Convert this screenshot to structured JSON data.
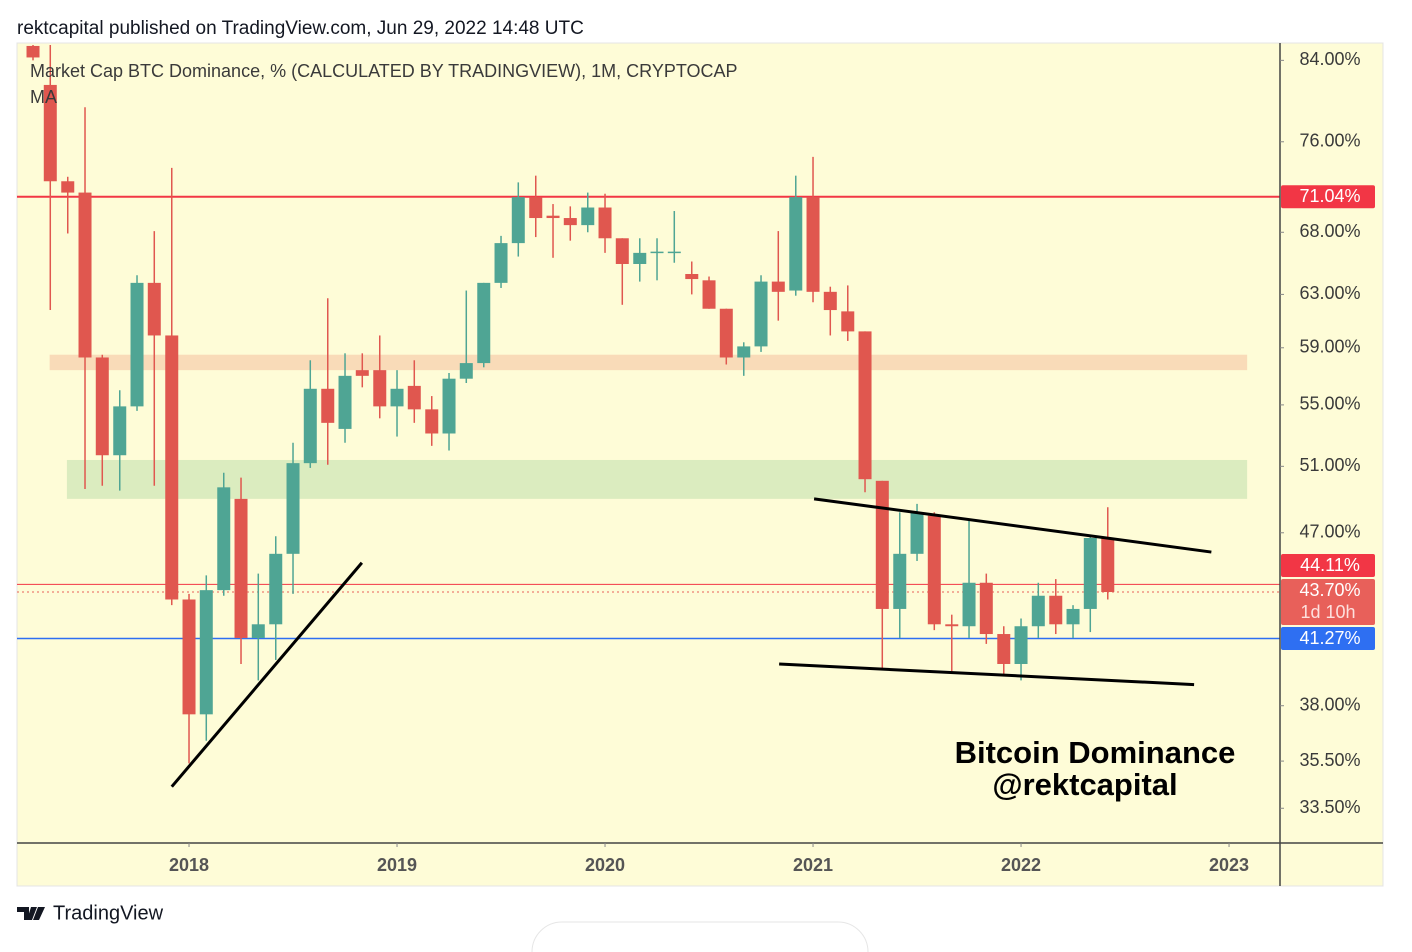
{
  "header": "rektcapital published on TradingView.com, Jun 29, 2022 14:48 UTC",
  "footer": "TradingView",
  "chart_data": {
    "type": "candlestick",
    "title": "Market Cap BTC Dominance, % (CALCULATED BY TRADINGVIEW), 1M, CRYPTOCAP",
    "subtitle": "MA",
    "annotation": [
      "Bitcoin Dominance",
      "@rektcapital"
    ],
    "up_color": "#4fa594",
    "down_color": "#e0574f",
    "log_scale": true,
    "grid": false,
    "xlim": [
      2017.173,
      2023.245
    ],
    "xticks": [
      2018,
      2019,
      2020,
      2021,
      2022,
      2023
    ],
    "ylim": [
      32.1,
      85.6
    ],
    "yticks": [
      {
        "value": 84,
        "label": "84.00%"
      },
      {
        "value": 76,
        "label": "76.00%"
      },
      {
        "value": 68,
        "label": "68.00%"
      },
      {
        "value": 63,
        "label": "63.00%"
      },
      {
        "value": 59,
        "label": "59.00%"
      },
      {
        "value": 55,
        "label": "55.00%"
      },
      {
        "value": 51,
        "label": "51.00%"
      },
      {
        "value": 47,
        "label": "47.00%"
      },
      {
        "value": 38,
        "label": "38.00%"
      },
      {
        "value": 35.5,
        "label": "35.50%"
      },
      {
        "value": 33.5,
        "label": "33.50%"
      }
    ],
    "x": [
      2017.25,
      2017.333,
      2017.417,
      2017.5,
      2017.583,
      2017.667,
      2017.75,
      2017.833,
      2017.917,
      2018,
      2018.083,
      2018.167,
      2018.25,
      2018.333,
      2018.417,
      2018.5,
      2018.583,
      2018.667,
      2018.75,
      2018.833,
      2018.917,
      2019,
      2019.083,
      2019.167,
      2019.25,
      2019.333,
      2019.417,
      2019.5,
      2019.583,
      2019.667,
      2019.75,
      2019.833,
      2019.917,
      2020,
      2020.083,
      2020.167,
      2020.25,
      2020.333,
      2020.417,
      2020.5,
      2020.583,
      2020.667,
      2020.75,
      2020.833,
      2020.917,
      2021,
      2021.083,
      2021.167,
      2021.25,
      2021.333,
      2021.417,
      2021.5,
      2021.583,
      2021.667,
      2021.75,
      2021.833,
      2021.917,
      2022,
      2022.083,
      2022.167,
      2022.25,
      2022.333,
      2022.417
    ],
    "open": [
      85.5,
      81.5,
      72.4,
      71.4,
      58.3,
      51.7,
      54.9,
      63.9,
      59.9,
      43.3,
      37.6,
      43.8,
      49.0,
      41.3,
      42.0,
      45.8,
      51.2,
      56.1,
      53.4,
      57.4,
      57.4,
      54.9,
      56.3,
      54.7,
      53.1,
      56.8,
      57.9,
      63.9,
      67.1,
      71.0,
      69.4,
      69.2,
      68.6,
      70.1,
      67.5,
      65.4,
      66.3,
      66.3,
      64.6,
      64.1,
      61.9,
      58.3,
      59.1,
      64.0,
      63.3,
      71.0,
      63.2,
      61.7,
      60.2,
      50.1,
      42.8,
      45.8,
      48.0,
      42.0,
      41.9,
      44.2,
      41.5,
      40.0,
      41.9,
      43.5,
      42.0,
      42.8,
      46.7
    ],
    "high": [
      85.6,
      85.6,
      72.8,
      79.3,
      58.5,
      56.0,
      64.5,
      68.1,
      73.6,
      43.6,
      44.6,
      50.6,
      50.3,
      44.7,
      46.8,
      52.5,
      58.1,
      62.7,
      58.6,
      58.6,
      59.9,
      57.4,
      58.1,
      55.6,
      57.2,
      63.3,
      63.9,
      67.7,
      72.3,
      72.9,
      70.4,
      70.2,
      71.4,
      71.3,
      67.5,
      67.5,
      67.5,
      69.8,
      65.6,
      64.4,
      61.9,
      59.4,
      64.5,
      68.1,
      72.9,
      74.6,
      63.6,
      63.7,
      60.2,
      50.1,
      48.2,
      48.7,
      48.2,
      42.5,
      47.7,
      44.7,
      41.9,
      42.3,
      44.2,
      44.4,
      43.0,
      46.9,
      48.5
    ],
    "low": [
      84.0,
      61.8,
      67.9,
      49.6,
      49.8,
      49.5,
      54.6,
      49.8,
      43.0,
      35.4,
      36.4,
      43.5,
      40.0,
      39.2,
      40.2,
      43.6,
      50.9,
      51.1,
      52.5,
      56.2,
      54.1,
      52.9,
      53.8,
      52.3,
      52.0,
      56.5,
      57.6,
      63.5,
      66.0,
      67.6,
      65.9,
      67.3,
      68.0,
      66.3,
      62.2,
      64.0,
      64.1,
      65.5,
      63.0,
      61.9,
      57.8,
      57.0,
      58.7,
      61.0,
      62.9,
      62.4,
      59.9,
      59.5,
      49.4,
      39.7,
      41.3,
      45.4,
      41.7,
      39.6,
      41.3,
      41.0,
      39.4,
      39.2,
      41.3,
      41.5,
      41.3,
      41.6,
      43.3
    ],
    "close": [
      84.3,
      72.4,
      71.4,
      58.3,
      51.7,
      54.9,
      63.9,
      59.9,
      43.3,
      37.6,
      43.8,
      49.7,
      41.3,
      42.0,
      45.8,
      51.2,
      56.1,
      53.8,
      57.0,
      57.0,
      54.9,
      56.1,
      54.7,
      53.1,
      56.8,
      57.9,
      63.9,
      67.1,
      71.0,
      69.2,
      69.2,
      68.6,
      70.1,
      67.5,
      65.4,
      66.3,
      66.4,
      66.4,
      64.2,
      61.9,
      58.3,
      59.1,
      64.0,
      63.2,
      71.0,
      63.2,
      61.8,
      60.2,
      50.2,
      42.8,
      45.8,
      48.2,
      42.0,
      41.9,
      44.2,
      41.5,
      40.0,
      41.9,
      43.5,
      42.0,
      42.8,
      46.7,
      43.7
    ],
    "price_lines": [
      {
        "value": 71.04,
        "label": "71.04%",
        "color": "#f23645",
        "style": "solid",
        "width": 2
      },
      {
        "value": 44.11,
        "label": "44.11%",
        "color": "#f23645",
        "style": "solid",
        "width": 1
      },
      {
        "value": 43.7,
        "label": "43.70%",
        "color": "#e8605a",
        "style": "dotted",
        "width": 1,
        "countdown": "1d 10h"
      },
      {
        "value": 41.27,
        "label": "41.27%",
        "color": "#2e6ff2",
        "style": "solid",
        "width": 1.5
      }
    ],
    "zones": [
      {
        "xlim": [
          2017.33,
          2023.087
        ],
        "ylim": [
          57.4,
          58.5
        ],
        "color": "#f8d5b3"
      },
      {
        "xlim": [
          2017.413,
          2023.087
        ],
        "ylim": [
          49.0,
          51.4
        ],
        "color": "#d5e9bb"
      }
    ],
    "trendlines": [
      {
        "x": [
          2017.917,
          2018.831
        ],
        "y": [
          34.4,
          45.3
        ]
      },
      {
        "x": [
          2021.005,
          2022.915
        ],
        "y": [
          49.0,
          45.9
        ]
      },
      {
        "x": [
          2020.837,
          2022.832
        ],
        "y": [
          40.0,
          39.0
        ]
      }
    ]
  }
}
